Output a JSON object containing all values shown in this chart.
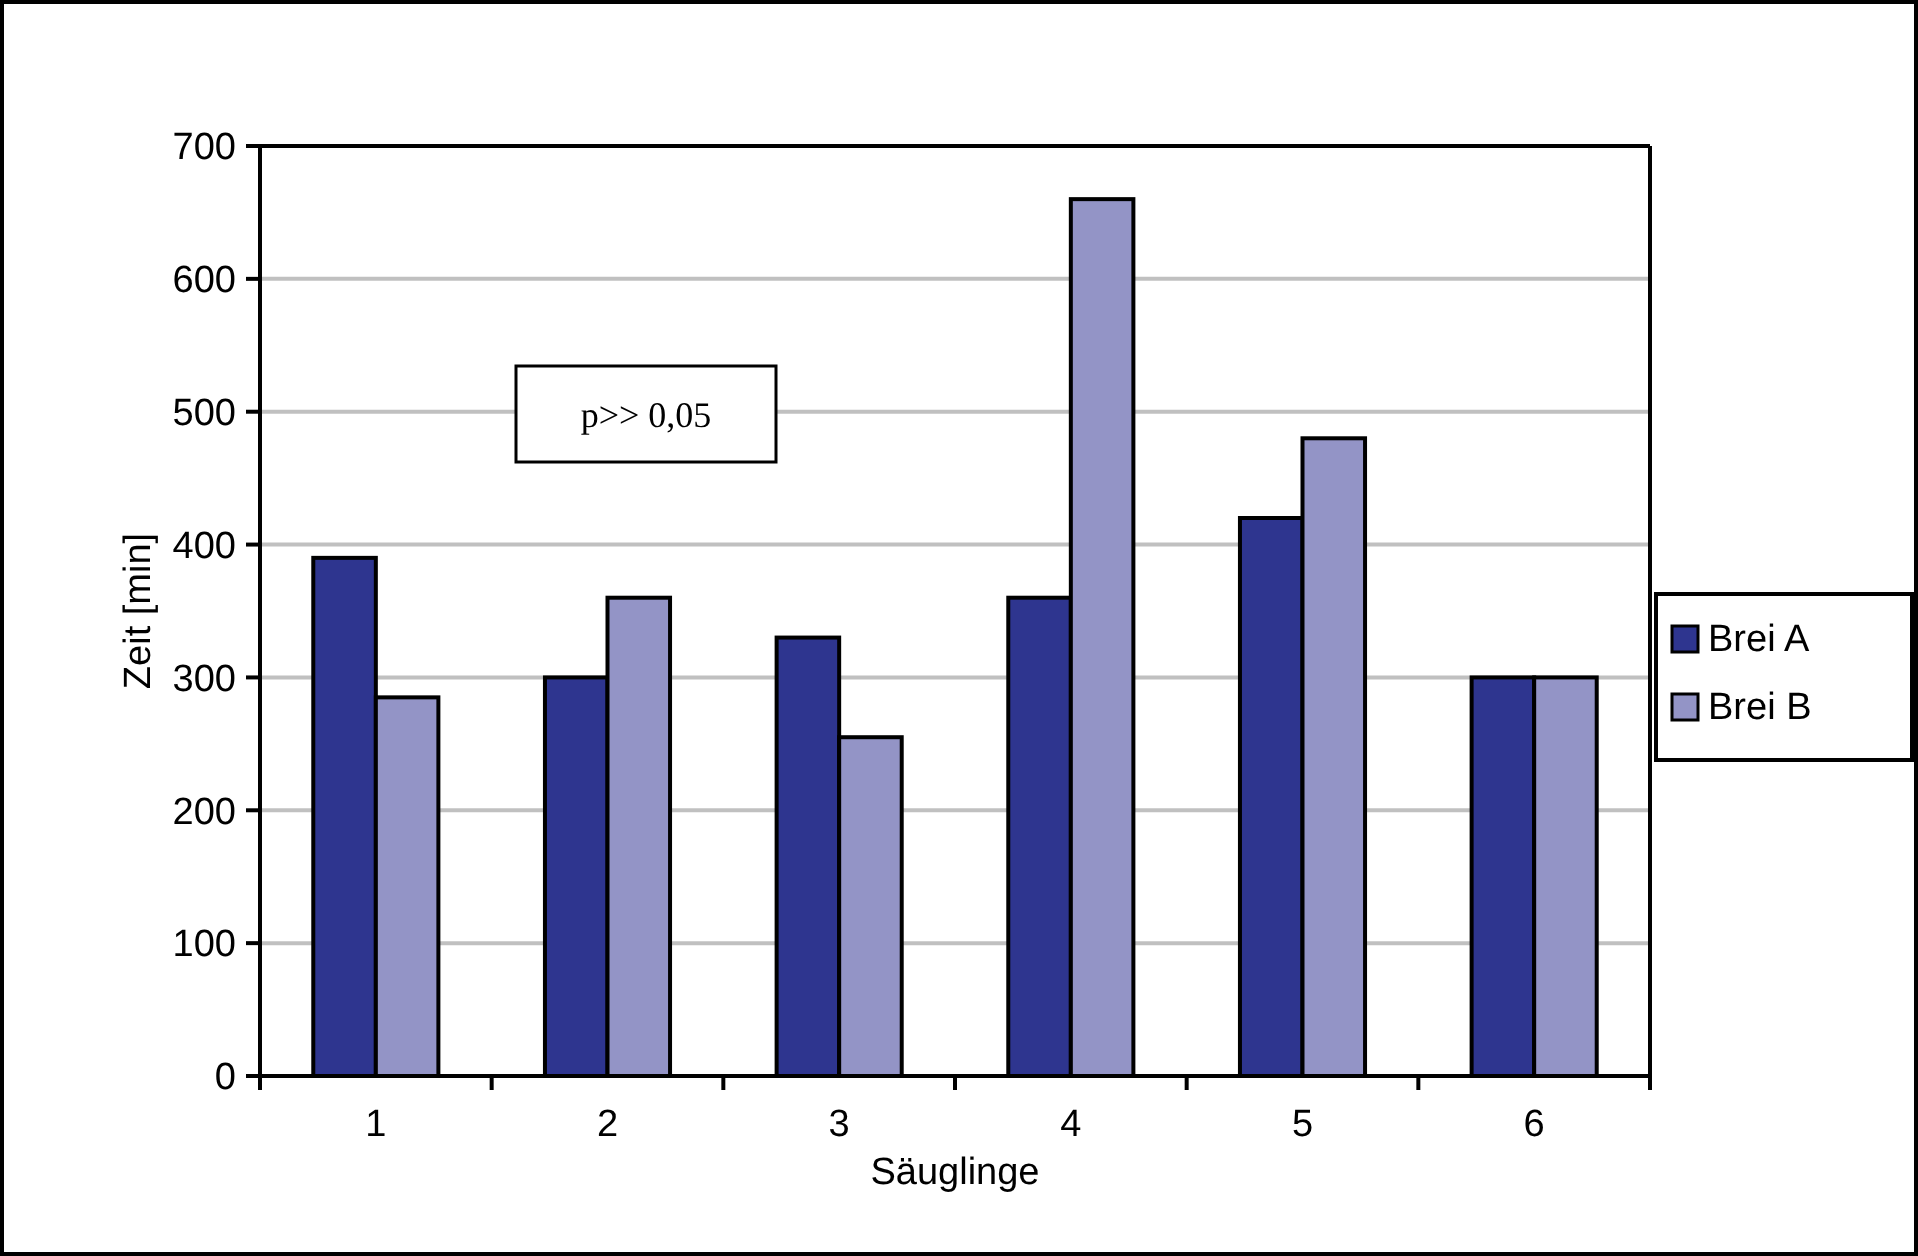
{
  "chart_data": {
    "type": "bar",
    "xlabel": "Säuglinge",
    "ylabel": "Zeit [min]",
    "categories": [
      "1",
      "2",
      "3",
      "4",
      "5",
      "6"
    ],
    "series": [
      {
        "name": "Brei A",
        "color": "#2e358f",
        "values": [
          390,
          300,
          330,
          360,
          420,
          300
        ]
      },
      {
        "name": "Brei B",
        "color": "#9394c6",
        "values": [
          285,
          360,
          255,
          660,
          480,
          300
        ]
      }
    ],
    "ylim": [
      0,
      700
    ],
    "yticks": [
      0,
      100,
      200,
      300,
      400,
      500,
      600,
      700
    ],
    "grid": "y",
    "legend": "right",
    "annotations": [
      "p>> 0,05"
    ]
  }
}
